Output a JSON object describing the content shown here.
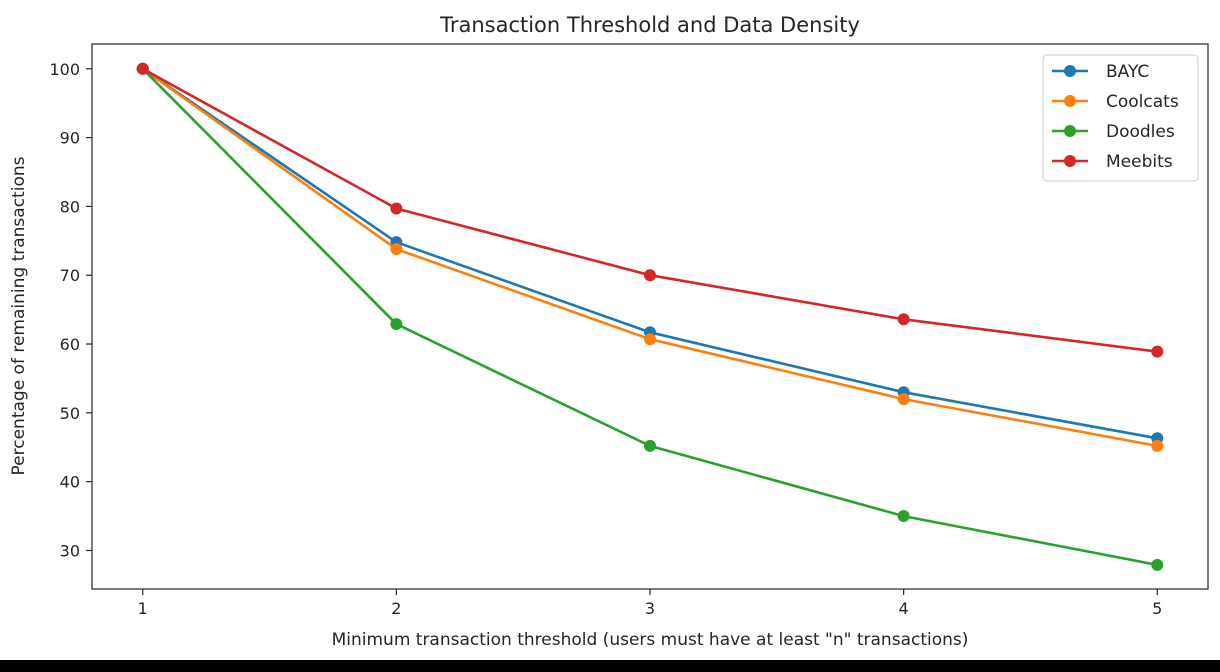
{
  "chart_data": {
    "type": "line",
    "title": "Transaction Threshold and Data Density",
    "xlabel": "Minimum transaction threshold (users must have at least \"n\" transactions)",
    "ylabel": "Percentage of remaining transactions",
    "x": [
      1,
      2,
      3,
      4,
      5
    ],
    "xticks": [
      "1",
      "2",
      "3",
      "4",
      "5"
    ],
    "yticks": [
      30,
      40,
      50,
      60,
      70,
      80,
      90,
      100
    ],
    "xlim": [
      0.8,
      5.2
    ],
    "ylim": [
      24.4,
      103.6
    ],
    "grid": false,
    "legend_position": "top-right",
    "series": [
      {
        "name": "BAYC",
        "color": "#1f77b4",
        "values": [
          100,
          74.8,
          61.7,
          53.0,
          46.3
        ]
      },
      {
        "name": "Coolcats",
        "color": "#ff7f0e",
        "values": [
          100,
          73.8,
          60.7,
          52.0,
          45.2
        ]
      },
      {
        "name": "Doodles",
        "color": "#2ca02c",
        "values": [
          100,
          62.9,
          45.2,
          35.0,
          27.9
        ]
      },
      {
        "name": "Meebits",
        "color": "#d62728",
        "values": [
          100,
          79.7,
          70.0,
          63.6,
          58.9
        ]
      }
    ]
  }
}
